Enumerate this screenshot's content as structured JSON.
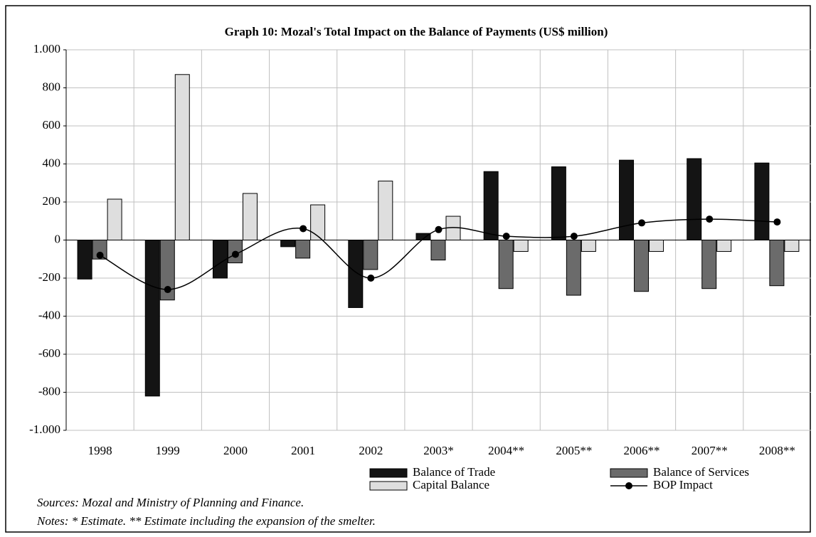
{
  "chart_data": {
    "type": "bar",
    "title": "Graph 10: Mozal's Total Impact on the Balance of Payments (US$ million)",
    "categories": [
      "1998",
      "1999",
      "2000",
      "2001",
      "2002",
      "2003*",
      "2004**",
      "2005**",
      "2006**",
      "2007**",
      "2008**"
    ],
    "series": [
      {
        "name": "Balance of Trade",
        "color": "#141414",
        "values": [
          -205,
          -820,
          -200,
          -35,
          -355,
          35,
          360,
          385,
          420,
          428,
          405
        ]
      },
      {
        "name": "Balance of Services",
        "color": "#6b6b6b",
        "values": [
          -100,
          -315,
          -120,
          -95,
          -155,
          -105,
          -255,
          -290,
          -270,
          -255,
          -240
        ]
      },
      {
        "name": "Capital Balance",
        "color": "#dedede",
        "values": [
          215,
          870,
          245,
          185,
          310,
          125,
          -60,
          -60,
          -60,
          -60,
          -60
        ]
      },
      {
        "name": "BOP Impact",
        "color": "#000000",
        "type": "line",
        "values": [
          -80,
          -260,
          -75,
          60,
          -200,
          55,
          20,
          20,
          90,
          110,
          95
        ]
      }
    ],
    "ylim": [
      -1000,
      1000
    ],
    "yticks": [
      {
        "value": -1000,
        "label": "-1.000"
      },
      -800,
      -600,
      -400,
      -200,
      0,
      200,
      400,
      600,
      800,
      {
        "value": 1000,
        "label": "1.000"
      }
    ],
    "grid": true,
    "sources": "Sources: Mozal and Ministry of Planning and Finance.",
    "notes": "Notes: * Estimate. ** Estimate including the expansion of the smelter."
  }
}
